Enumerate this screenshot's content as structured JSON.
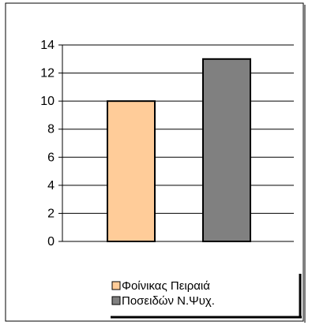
{
  "chart_data": {
    "type": "bar",
    "categories": [
      "Φοίνικας Πειραιά",
      "Ποσειδών Ν.Ψυχ."
    ],
    "values": [
      10,
      13
    ],
    "colors": [
      "#FFCC99",
      "#808080"
    ],
    "ylim": [
      0,
      14
    ],
    "yticks": [
      0,
      2,
      4,
      6,
      8,
      10,
      12,
      14
    ],
    "ytick_labels": [
      "0",
      "2",
      "4",
      "6",
      "8",
      "10",
      "12",
      "14"
    ],
    "grid": true,
    "legend": {
      "placement": "bottom",
      "entries": [
        "Φοίνικας Πειραιά",
        "Ποσειδών Ν.Ψυχ."
      ]
    }
  }
}
